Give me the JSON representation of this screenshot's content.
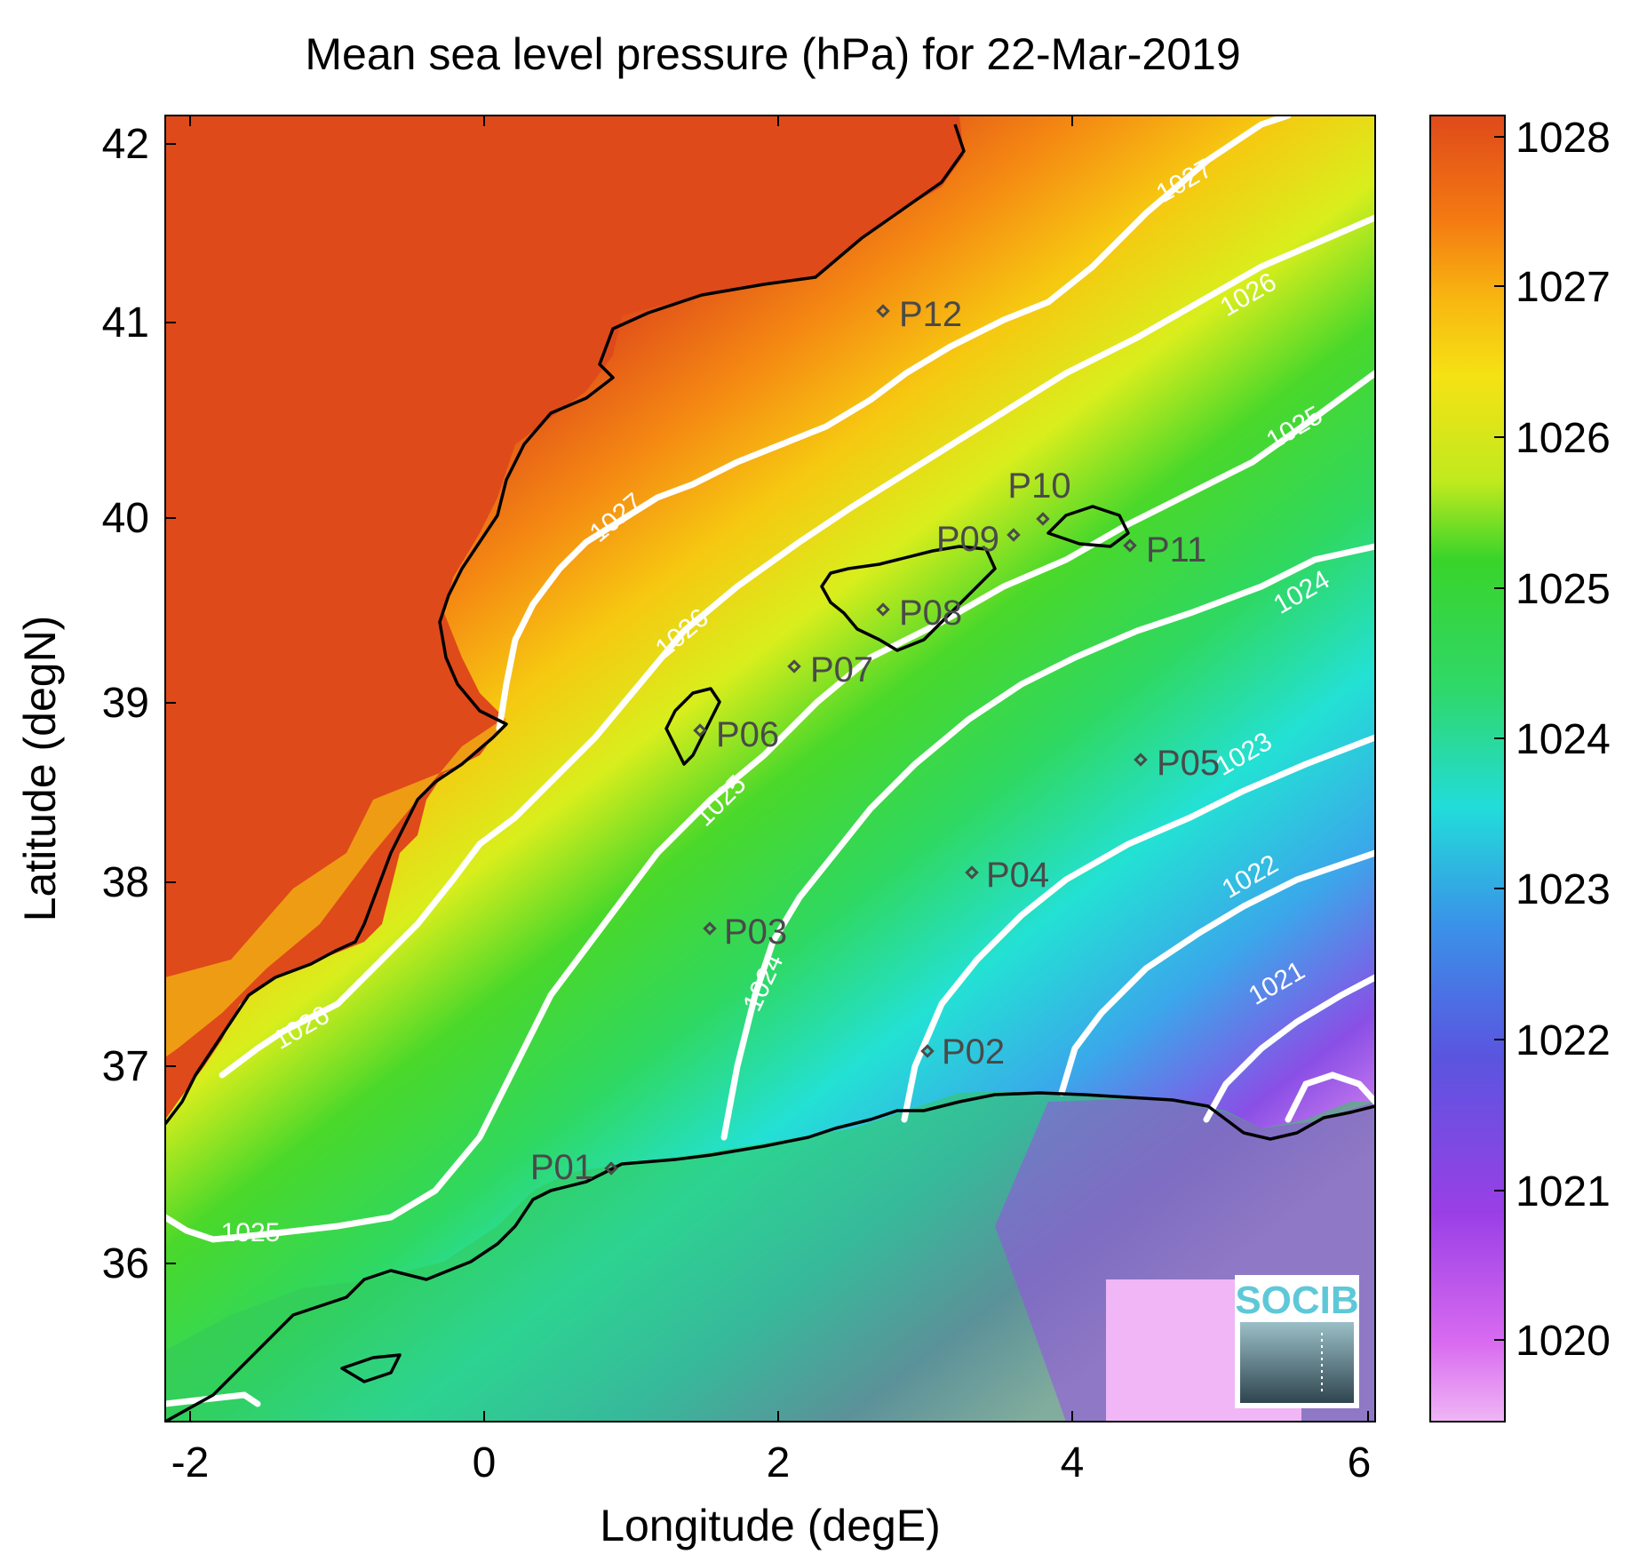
{
  "title": "Mean sea level pressure (hPa) for 22-Mar-2019",
  "xlabel": "Longitude (degE)",
  "ylabel": "Latitude (degN)",
  "x_ticks": [
    "-2",
    "0",
    "2",
    "4",
    "6"
  ],
  "y_ticks": [
    "42",
    "41",
    "40",
    "39",
    "38",
    "37",
    "36"
  ],
  "colorbar": {
    "ticks": [
      "1028",
      "1027",
      "1026",
      "1025",
      "1024",
      "1023",
      "1022",
      "1021",
      "1020"
    ],
    "colors": [
      "#efb6f5",
      "#b23ee9",
      "#6c44df",
      "#3a8fe8",
      "#22e0da",
      "#2fd86a",
      "#35d42e",
      "#e6f01a",
      "#f8c010",
      "#f47a12",
      "#df4818"
    ]
  },
  "contour_labels": [
    "1027",
    "1026",
    "1025",
    "1024",
    "1023",
    "1022",
    "1021",
    "1026",
    "1027",
    "1026",
    "1025",
    "1024",
    "1025"
  ],
  "stations": [
    "P01",
    "P02",
    "P03",
    "P04",
    "P05",
    "P06",
    "P07",
    "P08",
    "P09",
    "P10",
    "P11",
    "P12"
  ],
  "logo": "SOCIB",
  "chart_data": {
    "type": "heatmap",
    "title": "Mean sea level pressure (hPa) for 22-Mar-2019",
    "xlabel": "Longitude (degE)",
    "ylabel": "Latitude (degN)",
    "xlim": [
      -2.2,
      6.05
    ],
    "ylim": [
      35.2,
      42.2
    ],
    "colorbar_range": [
      1019.6,
      1028.2
    ],
    "colorbar_units": "hPa",
    "contour_levels": [
      1021,
      1022,
      1023,
      1024,
      1025,
      1026,
      1027
    ],
    "stations": [
      {
        "name": "P01",
        "lon": 0.85,
        "lat": 36.5
      },
      {
        "name": "P02",
        "lon": 3.0,
        "lat": 37.15
      },
      {
        "name": "P03",
        "lon": 1.5,
        "lat": 37.8
      },
      {
        "name": "P04",
        "lon": 3.3,
        "lat": 38.1
      },
      {
        "name": "P05",
        "lon": 4.5,
        "lat": 38.7
      },
      {
        "name": "P06",
        "lon": 1.45,
        "lat": 38.85
      },
      {
        "name": "P07",
        "lon": 2.1,
        "lat": 39.2
      },
      {
        "name": "P08",
        "lon": 2.7,
        "lat": 39.5
      },
      {
        "name": "P09",
        "lon": 3.6,
        "lat": 39.9
      },
      {
        "name": "P10",
        "lon": 3.8,
        "lat": 40.0
      },
      {
        "name": "P11",
        "lon": 4.4,
        "lat": 39.85
      },
      {
        "name": "P12",
        "lon": 2.7,
        "lat": 41.1
      }
    ],
    "grid": false
  }
}
